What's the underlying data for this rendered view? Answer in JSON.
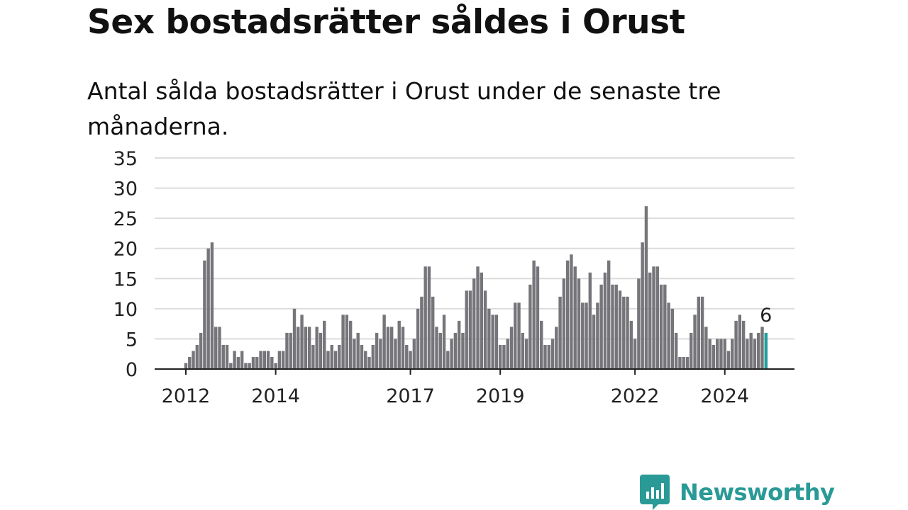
{
  "title": "Sex bostadsrätter såldes i Orust",
  "subtitle": "Antal sålda bostadsrätter i Orust under de senaste tre månaderna.",
  "colors": {
    "bar": "#76757a",
    "highlight": "#1f9f9b",
    "grid": "#dcdcdc",
    "axis": "#222222",
    "brand": "#2a9a96"
  },
  "logo": {
    "text": "Newsworthy",
    "icon": "chart-bubble-icon"
  },
  "chart_data": {
    "type": "bar",
    "start": "2012-01",
    "frequency": "monthly",
    "ylim": [
      0,
      35
    ],
    "yticks": [
      0,
      5,
      10,
      15,
      20,
      25,
      30,
      35
    ],
    "xticks": [
      {
        "label": "2012",
        "date": "2012-01"
      },
      {
        "label": "2014",
        "date": "2014-01"
      },
      {
        "label": "2017",
        "date": "2017-01"
      },
      {
        "label": "2019",
        "date": "2019-01"
      },
      {
        "label": "2022",
        "date": "2022-01"
      },
      {
        "label": "2024",
        "date": "2024-01"
      }
    ],
    "values": [
      1,
      2,
      3,
      4,
      6,
      18,
      20,
      21,
      7,
      7,
      4,
      4,
      1,
      3,
      2,
      3,
      1,
      1,
      2,
      2,
      3,
      3,
      3,
      2,
      1,
      3,
      3,
      6,
      6,
      10,
      7,
      9,
      7,
      7,
      4,
      7,
      6,
      8,
      3,
      4,
      3,
      4,
      9,
      9,
      8,
      5,
      6,
      4,
      3,
      2,
      4,
      6,
      5,
      9,
      7,
      7,
      5,
      8,
      7,
      4,
      3,
      5,
      10,
      12,
      17,
      17,
      12,
      7,
      6,
      9,
      3,
      5,
      6,
      8,
      6,
      13,
      13,
      15,
      17,
      16,
      13,
      10,
      9,
      9,
      4,
      4,
      5,
      7,
      11,
      11,
      6,
      5,
      14,
      18,
      17,
      8,
      4,
      4,
      5,
      7,
      12,
      15,
      18,
      19,
      17,
      15,
      11,
      11,
      16,
      9,
      11,
      14,
      16,
      18,
      14,
      14,
      13,
      12,
      12,
      8,
      5,
      15,
      21,
      27,
      16,
      17,
      17,
      14,
      14,
      11,
      10,
      6,
      2,
      2,
      2,
      6,
      9,
      12,
      12,
      7,
      5,
      4,
      5,
      5,
      5,
      3,
      5,
      8,
      9,
      8,
      5,
      6,
      5,
      6,
      7,
      6
    ],
    "highlight_last": true,
    "annotation": {
      "text": "6",
      "target": "last"
    }
  }
}
